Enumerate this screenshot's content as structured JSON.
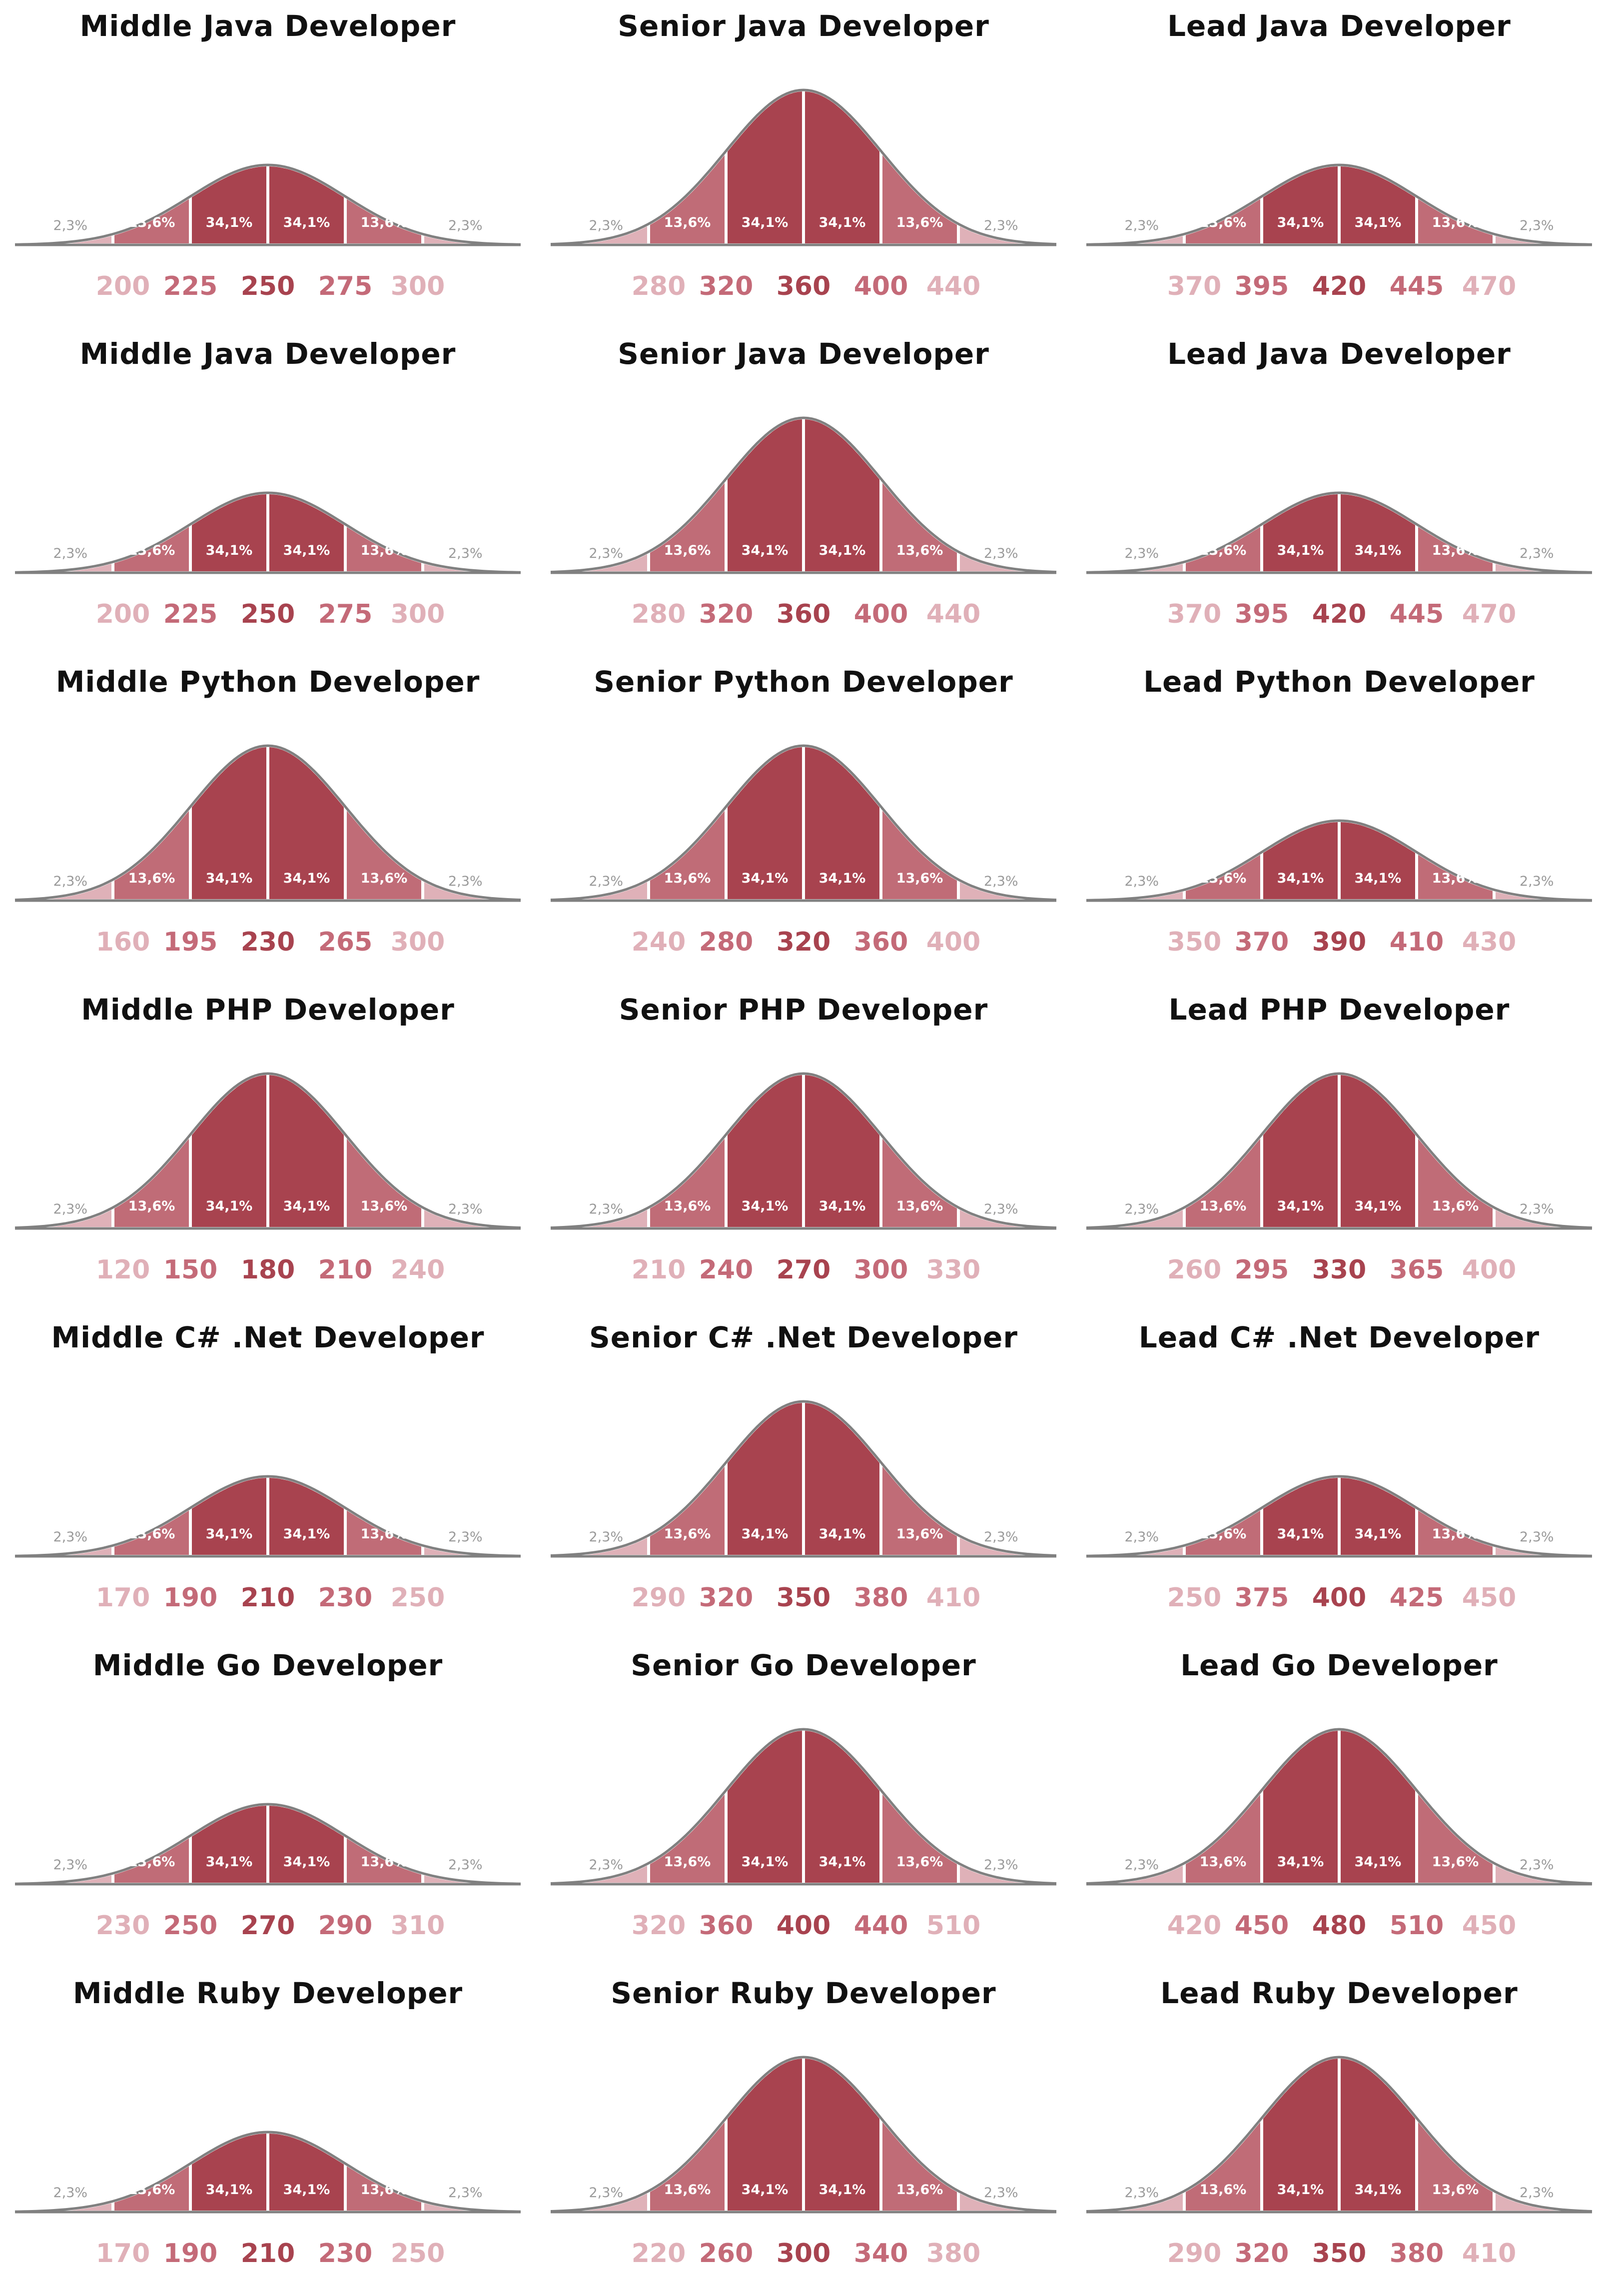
{
  "colors": {
    "outer": "#dfb1b8",
    "mid": "#c06c77",
    "inner": "#a8434f",
    "outline": "#808080",
    "tick_outer": "#e0b0b8",
    "tick_mid": "#c46a78",
    "tick_center": "#a8434f",
    "pct_outer": "#9a9a9a",
    "pct_inner": "#ffffff"
  },
  "chart_data": [
    {
      "type": "area",
      "title": "Middle Java Developer",
      "segment_labels": [
        "2,3%",
        "13,6%",
        "34,1%",
        "34,1%",
        "13,6%",
        "2,3%"
      ],
      "ticks": [
        "200",
        "225",
        "250",
        "275",
        "300"
      ],
      "x": [
        200,
        225,
        250,
        275,
        300
      ],
      "peak_height": "low"
    },
    {
      "type": "area",
      "title": "Senior Java Developer",
      "segment_labels": [
        "2,3%",
        "13,6%",
        "34,1%",
        "34,1%",
        "13,6%",
        "2,3%"
      ],
      "ticks": [
        "280",
        "320",
        "360",
        "400",
        "440"
      ],
      "x": [
        280,
        320,
        360,
        400,
        440
      ],
      "peak_height": "high"
    },
    {
      "type": "area",
      "title": "Lead Java Developer",
      "segment_labels": [
        "2,3%",
        "13,6%",
        "34,1%",
        "34,1%",
        "13,6%",
        "2,3%"
      ],
      "ticks": [
        "370",
        "395",
        "420",
        "445",
        "470"
      ],
      "x": [
        370,
        395,
        420,
        445,
        470
      ],
      "peak_height": "low"
    },
    {
      "type": "area",
      "title": "Middle Java Developer",
      "segment_labels": [
        "2,3%",
        "13,6%",
        "34,1%",
        "34,1%",
        "13,6%",
        "2,3%"
      ],
      "ticks": [
        "200",
        "225",
        "250",
        "275",
        "300"
      ],
      "x": [
        200,
        225,
        250,
        275,
        300
      ],
      "peak_height": "low"
    },
    {
      "type": "area",
      "title": "Senior Java Developer",
      "segment_labels": [
        "2,3%",
        "13,6%",
        "34,1%",
        "34,1%",
        "13,6%",
        "2,3%"
      ],
      "ticks": [
        "280",
        "320",
        "360",
        "400",
        "440"
      ],
      "x": [
        280,
        320,
        360,
        400,
        440
      ],
      "peak_height": "high"
    },
    {
      "type": "area",
      "title": "Lead Java Developer",
      "segment_labels": [
        "2,3%",
        "13,6%",
        "34,1%",
        "34,1%",
        "13,6%",
        "2,3%"
      ],
      "ticks": [
        "370",
        "395",
        "420",
        "445",
        "470"
      ],
      "x": [
        370,
        395,
        420,
        445,
        470
      ],
      "peak_height": "low"
    },
    {
      "type": "area",
      "title": "Middle Python Developer",
      "segment_labels": [
        "2,3%",
        "13,6%",
        "34,1%",
        "34,1%",
        "13,6%",
        "2,3%"
      ],
      "ticks": [
        "160",
        "195",
        "230",
        "265",
        "300"
      ],
      "x": [
        160,
        195,
        230,
        265,
        300
      ],
      "peak_height": "high"
    },
    {
      "type": "area",
      "title": "Senior Python Developer",
      "segment_labels": [
        "2,3%",
        "13,6%",
        "34,1%",
        "34,1%",
        "13,6%",
        "2,3%"
      ],
      "ticks": [
        "240",
        "280",
        "320",
        "360",
        "400"
      ],
      "x": [
        240,
        280,
        320,
        360,
        400
      ],
      "peak_height": "high"
    },
    {
      "type": "area",
      "title": "Lead Python Developer",
      "segment_labels": [
        "2,3%",
        "13,6%",
        "34,1%",
        "34,1%",
        "13,6%",
        "2,3%"
      ],
      "ticks": [
        "350",
        "370",
        "390",
        "410",
        "430"
      ],
      "x": [
        350,
        370,
        390,
        410,
        430
      ],
      "peak_height": "low"
    },
    {
      "type": "area",
      "title": "Middle PHP Developer",
      "segment_labels": [
        "2,3%",
        "13,6%",
        "34,1%",
        "34,1%",
        "13,6%",
        "2,3%"
      ],
      "ticks": [
        "120",
        "150",
        "180",
        "210",
        "240"
      ],
      "x": [
        120,
        150,
        180,
        210,
        240
      ],
      "peak_height": "high"
    },
    {
      "type": "area",
      "title": "Senior PHP Developer",
      "segment_labels": [
        "2,3%",
        "13,6%",
        "34,1%",
        "34,1%",
        "13,6%",
        "2,3%"
      ],
      "ticks": [
        "210",
        "240",
        "270",
        "300",
        "330"
      ],
      "x": [
        210,
        240,
        270,
        300,
        330
      ],
      "peak_height": "high"
    },
    {
      "type": "area",
      "title": "Lead PHP Developer",
      "segment_labels": [
        "2,3%",
        "13,6%",
        "34,1%",
        "34,1%",
        "13,6%",
        "2,3%"
      ],
      "ticks": [
        "260",
        "295",
        "330",
        "365",
        "400"
      ],
      "x": [
        260,
        295,
        330,
        365,
        400
      ],
      "peak_height": "high"
    },
    {
      "type": "area",
      "title": "Middle C# .Net Developer",
      "segment_labels": [
        "2,3%",
        "13,6%",
        "34,1%",
        "34,1%",
        "13,6%",
        "2,3%"
      ],
      "ticks": [
        "170",
        "190",
        "210",
        "230",
        "250"
      ],
      "x": [
        170,
        190,
        210,
        230,
        250
      ],
      "peak_height": "low"
    },
    {
      "type": "area",
      "title": "Senior C# .Net Developer",
      "segment_labels": [
        "2,3%",
        "13,6%",
        "34,1%",
        "34,1%",
        "13,6%",
        "2,3%"
      ],
      "ticks": [
        "290",
        "320",
        "350",
        "380",
        "410"
      ],
      "x": [
        290,
        320,
        350,
        380,
        410
      ],
      "peak_height": "high"
    },
    {
      "type": "area",
      "title": "Lead C# .Net Developer",
      "segment_labels": [
        "2,3%",
        "13,6%",
        "34,1%",
        "34,1%",
        "13,6%",
        "2,3%"
      ],
      "ticks": [
        "250",
        "375",
        "400",
        "425",
        "450"
      ],
      "x": [
        250,
        375,
        400,
        425,
        450
      ],
      "peak_height": "low"
    },
    {
      "type": "area",
      "title": "Middle Go Developer",
      "segment_labels": [
        "2,3%",
        "13,6%",
        "34,1%",
        "34,1%",
        "13,6%",
        "2,3%"
      ],
      "ticks": [
        "230",
        "250",
        "270",
        "290",
        "310"
      ],
      "x": [
        230,
        250,
        270,
        290,
        310
      ],
      "peak_height": "low"
    },
    {
      "type": "area",
      "title": "Senior Go Developer",
      "segment_labels": [
        "2,3%",
        "13,6%",
        "34,1%",
        "34,1%",
        "13,6%",
        "2,3%"
      ],
      "ticks": [
        "320",
        "360",
        "400",
        "440",
        "510"
      ],
      "x": [
        320,
        360,
        400,
        440,
        510
      ],
      "peak_height": "high"
    },
    {
      "type": "area",
      "title": "Lead Go Developer",
      "segment_labels": [
        "2,3%",
        "13,6%",
        "34,1%",
        "34,1%",
        "13,6%",
        "2,3%"
      ],
      "ticks": [
        "420",
        "450",
        "480",
        "510",
        "450"
      ],
      "x": [
        420,
        450,
        480,
        510,
        450
      ],
      "peak_height": "high"
    },
    {
      "type": "area",
      "title": "Middle Ruby Developer",
      "segment_labels": [
        "2,3%",
        "13,6%",
        "34,1%",
        "34,1%",
        "13,6%",
        "2,3%"
      ],
      "ticks": [
        "170",
        "190",
        "210",
        "230",
        "250"
      ],
      "x": [
        170,
        190,
        210,
        230,
        250
      ],
      "peak_height": "low"
    },
    {
      "type": "area",
      "title": "Senior Ruby Developer",
      "segment_labels": [
        "2,3%",
        "13,6%",
        "34,1%",
        "34,1%",
        "13,6%",
        "2,3%"
      ],
      "ticks": [
        "220",
        "260",
        "300",
        "340",
        "380"
      ],
      "x": [
        220,
        260,
        300,
        340,
        380
      ],
      "peak_height": "high"
    },
    {
      "type": "area",
      "title": "Lead Ruby Developer",
      "segment_labels": [
        "2,3%",
        "13,6%",
        "34,1%",
        "34,1%",
        "13,6%",
        "2,3%"
      ],
      "ticks": [
        "290",
        "320",
        "350",
        "380",
        "410"
      ],
      "x": [
        290,
        320,
        350,
        380,
        410
      ],
      "peak_height": "high"
    }
  ]
}
